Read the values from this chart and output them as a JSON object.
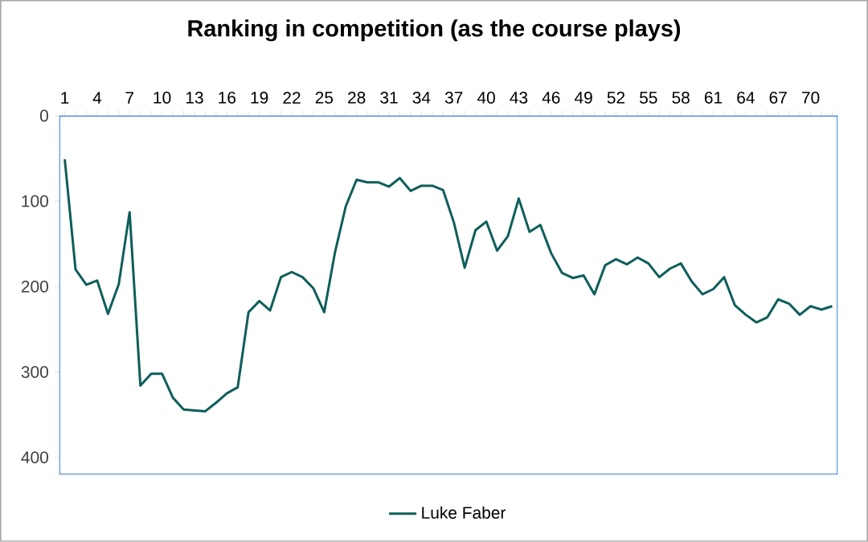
{
  "chart_data": {
    "type": "line",
    "title": "Ranking in competition (as the course plays)",
    "categories": [
      "1",
      null,
      null,
      "4",
      null,
      null,
      "7",
      null,
      null,
      "10",
      null,
      null,
      "13",
      null,
      null,
      "16",
      null,
      null,
      "19",
      null,
      null,
      "22",
      null,
      null,
      "25",
      null,
      null,
      "28",
      null,
      null,
      "31",
      null,
      null,
      "34",
      null,
      null,
      "37",
      null,
      null,
      "40",
      null,
      null,
      "43",
      null,
      null,
      "46",
      null,
      null,
      "49",
      null,
      null,
      "52",
      null,
      null,
      "55",
      null,
      null,
      "58",
      null,
      null,
      "61",
      null,
      null,
      "64",
      null,
      null,
      "67",
      null,
      null,
      "70",
      null,
      null
    ],
    "series": [
      {
        "name": "Luke Faber",
        "color": "#0e5e5a",
        "values": [
          51,
          180,
          198,
          193,
          232,
          197,
          113,
          316,
          302,
          302,
          330,
          344,
          345,
          346,
          336,
          325,
          318,
          230,
          217,
          228,
          189,
          183,
          189,
          202,
          230,
          160,
          106,
          75,
          78,
          78,
          83,
          73,
          88,
          82,
          82,
          87,
          125,
          178,
          134,
          124,
          158,
          141,
          97,
          136,
          128,
          161,
          184,
          190,
          187,
          209,
          175,
          168,
          174,
          166,
          173,
          189,
          179,
          173,
          194,
          209,
          203,
          189,
          222,
          233,
          242,
          236,
          215,
          220,
          233,
          223,
          227,
          223
        ]
      }
    ],
    "ylim": [
      420,
      0
    ],
    "yticks": [
      0,
      100,
      200,
      300,
      400
    ],
    "legend": "bottom",
    "marker": "none",
    "line_style": "solid",
    "grid": false
  }
}
